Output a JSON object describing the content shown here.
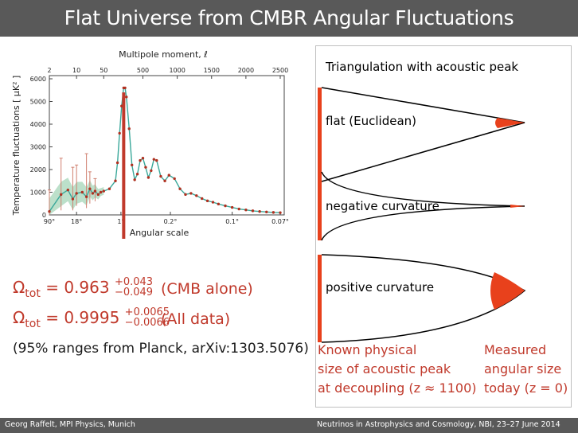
{
  "slide": {
    "title": "Flat Universe from CMBR Angular Fluctuations",
    "footer_left": "Georg Raffelt, MPI Physics, Munich",
    "footer_right": "Neutrinos in Astrophysics and Cosmology, NBI, 23–27 June 2014"
  },
  "chart_data": {
    "type": "scatter",
    "title": "",
    "top_axis_label": "Multipole moment, ℓ",
    "top_ticks": [
      "2",
      "10",
      "50",
      "500",
      "1000",
      "1500",
      "2000",
      "2500"
    ],
    "xlabel": "Angular scale",
    "bottom_ticks": [
      "90°",
      "18°",
      "1°",
      "0.2°",
      "0.1°",
      "0.07°"
    ],
    "ylabel": "Temperature fluctuations [ μK² ]",
    "ylim": [
      0,
      6000
    ],
    "y_ticks": [
      "0",
      "1000",
      "2000",
      "3000",
      "4000",
      "5000",
      "6000"
    ],
    "series": [
      {
        "x": [
          2,
          4,
          6,
          8,
          10,
          14,
          18,
          22,
          26,
          30,
          36,
          42,
          50,
          70,
          100,
          130,
          160,
          190,
          220,
          240,
          260,
          300,
          340,
          380,
          420,
          460,
          500,
          540,
          580,
          620,
          660,
          700,
          760,
          820,
          880,
          960,
          1040,
          1120,
          1200,
          1280,
          1360,
          1440,
          1520,
          1600,
          1700,
          1800,
          1900,
          2000,
          2100,
          2200,
          2300,
          2400,
          2500
        ],
        "y": [
          150,
          900,
          1100,
          700,
          950,
          1000,
          800,
          1150,
          950,
          1050,
          900,
          1000,
          1050,
          1150,
          1500,
          2300,
          3600,
          4800,
          5600,
          5600,
          5200,
          3800,
          2200,
          1550,
          1800,
          2400,
          2500,
          2100,
          1650,
          1950,
          2450,
          2400,
          1700,
          1500,
          1750,
          1600,
          1150,
          900,
          950,
          850,
          720,
          620,
          560,
          480,
          400,
          330,
          260,
          220,
          180,
          150,
          130,
          110,
          100
        ]
      }
    ],
    "error_bars": [
      {
        "x": 2,
        "low": 0,
        "high": 1100
      },
      {
        "x": 4,
        "low": 200,
        "high": 2500
      },
      {
        "x": 8,
        "low": 200,
        "high": 2100
      },
      {
        "x": 10,
        "low": 400,
        "high": 2200
      },
      {
        "x": 18,
        "low": 300,
        "high": 2700
      },
      {
        "x": 22,
        "low": 500,
        "high": 1900
      },
      {
        "x": 30,
        "low": 600,
        "high": 1600
      }
    ]
  },
  "omega": {
    "symbol": "Ω",
    "subscript": "tot",
    "line1": {
      "value": "= 0.963",
      "sup": "+0.043",
      "sub": "−0.049",
      "note": "(CMB alone)"
    },
    "line2": {
      "value": "= 0.9995",
      "sup": "+0.0065",
      "sub": "−0.0066",
      "note": "(All data)"
    },
    "source": "(95% ranges from Planck, arXiv:1303.5076)"
  },
  "triangulation": {
    "title": "Triangulation with acoustic peak",
    "flat_label": "flat (Euclidean)",
    "negative_label": "negative curvature",
    "positive_label": "positive curvature",
    "left_caption": [
      "Known physical",
      "size of acoustic peak",
      "at decoupling (z ≈ 1100)"
    ],
    "right_caption": [
      "Measured",
      "angular size",
      "today (z = 0)"
    ],
    "colors": {
      "accent": "#e8411c",
      "text_red": "#c0392b",
      "line": "#000000"
    }
  }
}
